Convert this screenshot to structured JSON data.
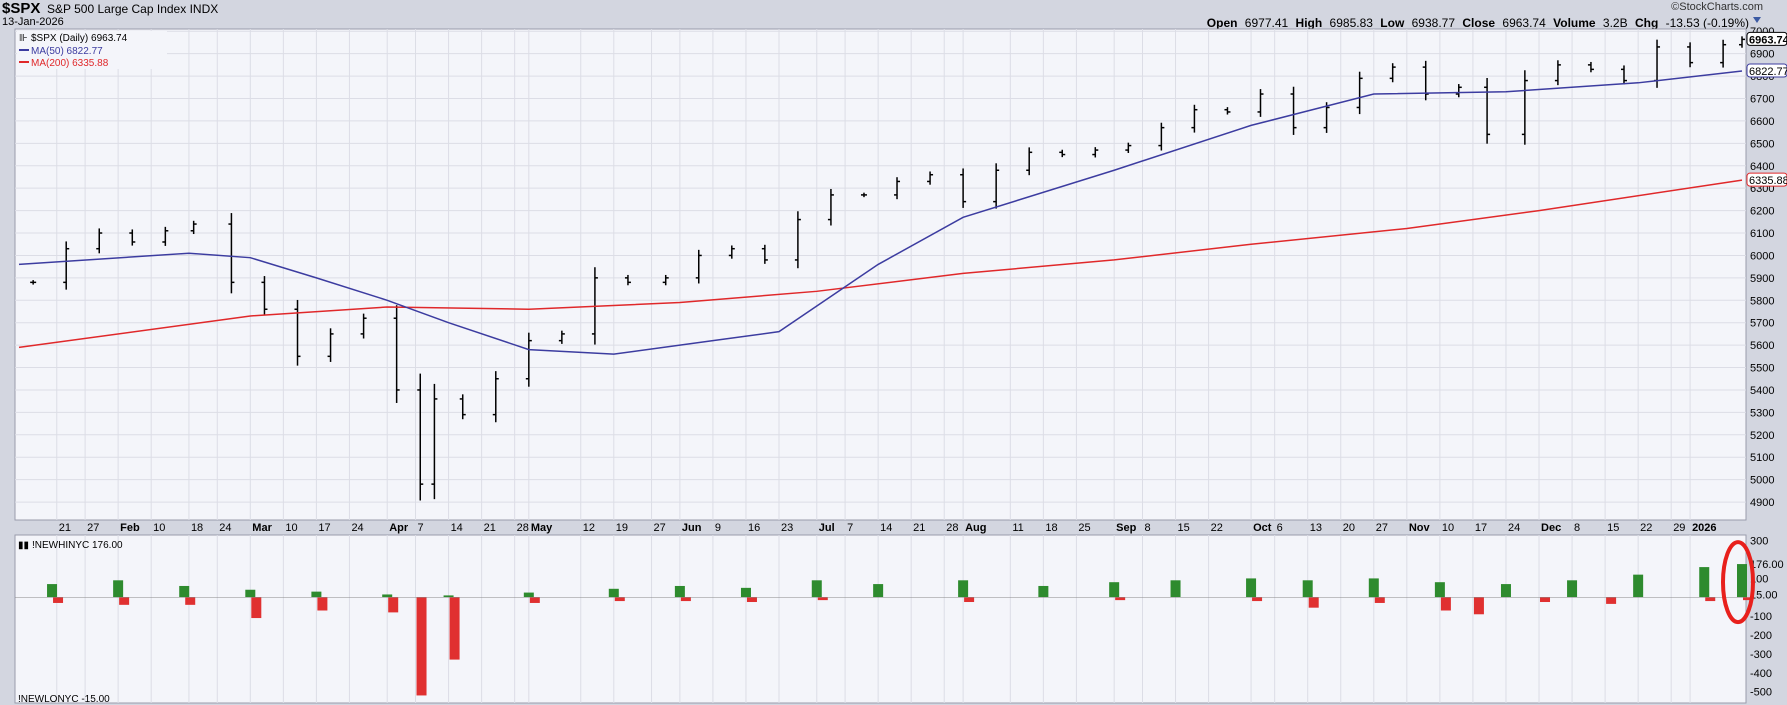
{
  "header": {
    "symbol": "$SPX",
    "description": "S&P 500 Large Cap Index",
    "exchange": "INDX",
    "date": "13-Jan-2026",
    "brand": "©StockCharts.com",
    "open_label": "Open",
    "open": "6977.41",
    "high_label": "High",
    "high": "6985.83",
    "low_label": "Low",
    "low": "6938.77",
    "close_label": "Close",
    "close": "6963.74",
    "volume_label": "Volume",
    "volume": "3.2B",
    "chg_label": "Chg",
    "chg": "-13.53 (-0.19%)"
  },
  "legend": {
    "price": "$SPX (Daily) 6963.74",
    "ma50": "MA(50) 6822.77",
    "ma200": "MA(200) 6335.88",
    "nh": "!NEWHINYC 176.00",
    "nl": "!NEWLONYC -15.00"
  },
  "colors": {
    "price": "#000000",
    "ma50": "#3c3ca0",
    "ma200": "#e0282a",
    "positive": "#2e8b2e",
    "negative": "#e03030",
    "highlight": "#e8201c",
    "panel_bg": "#f4f5fa",
    "grid": "#dcdde6"
  },
  "chart_data": [
    {
      "type": "line",
      "subtype": "ohlc-bars",
      "title": "$SPX S&P 500 Large Cap Index",
      "ylim": [
        4820,
        7010
      ],
      "y_ticks": [
        4900,
        5000,
        5100,
        5200,
        5300,
        5400,
        5500,
        5600,
        5700,
        5800,
        5900,
        6000,
        6100,
        6200,
        6300,
        6400,
        6500,
        6600,
        6700,
        6800,
        6900,
        7000
      ],
      "y_tick_labels": [
        "4900",
        "5000",
        "5100",
        "5200",
        "5300",
        "5400",
        "5500",
        "5600",
        "5700",
        "5800",
        "5900",
        "6000",
        "6100",
        "6200",
        "6300",
        "6400",
        "6500",
        "6600",
        "6700",
        "6800",
        "6900",
        "7000"
      ],
      "last_value_labels": [
        {
          "value": 6963.74,
          "label": "6963.74",
          "series": "price"
        },
        {
          "value": 6822.77,
          "label": "6822.77",
          "series": "ma50"
        },
        {
          "value": 6335.88,
          "label": "6335.88",
          "series": "ma200"
        }
      ],
      "x_label_dates": [
        "2025-01-21",
        "2025-01-27",
        "2025-02-03",
        "2025-02-10",
        "2025-02-18",
        "2025-02-24",
        "2025-03-03",
        "2025-03-10",
        "2025-03-17",
        "2025-03-24",
        "2025-04-01",
        "2025-04-07",
        "2025-04-14",
        "2025-04-21",
        "2025-04-28",
        "2025-05-01",
        "2025-05-12",
        "2025-05-19",
        "2025-05-27",
        "2025-06-02",
        "2025-06-09",
        "2025-06-16",
        "2025-06-23",
        "2025-07-01",
        "2025-07-07",
        "2025-07-14",
        "2025-07-21",
        "2025-07-28",
        "2025-08-01",
        "2025-08-11",
        "2025-08-18",
        "2025-08-25",
        "2025-09-02",
        "2025-09-08",
        "2025-09-15",
        "2025-09-22",
        "2025-10-01",
        "2025-10-06",
        "2025-10-13",
        "2025-10-20",
        "2025-10-27",
        "2025-11-03",
        "2025-11-10",
        "2025-11-17",
        "2025-11-24",
        "2025-12-01",
        "2025-12-08",
        "2025-12-15",
        "2025-12-22",
        "2025-12-29",
        "2026-01-02"
      ],
      "x_labels": [
        "21",
        "27",
        "Feb",
        "10",
        "18",
        "24",
        "Mar",
        "10",
        "17",
        "24",
        "Apr",
        "7",
        "14",
        "21",
        "28",
        "May",
        "12",
        "19",
        "27",
        "Jun",
        "9",
        "16",
        "23",
        "Jul",
        "7",
        "14",
        "21",
        "28",
        "Aug",
        "11",
        "18",
        "25",
        "Sep",
        "8",
        "15",
        "22",
        "Oct",
        "6",
        "13",
        "20",
        "27",
        "Nov",
        "10",
        "17",
        "24",
        "Dec",
        "8",
        "15",
        "22",
        "29",
        "2026"
      ],
      "x_bold_labels": [
        "Feb",
        "Mar",
        "Apr",
        "May",
        "Jun",
        "Jul",
        "Aug",
        "Sep",
        "Oct",
        "Nov",
        "Dec",
        "2026"
      ],
      "series": [
        {
          "name": "$SPX (Daily)",
          "kind": "ohlc",
          "x": [
            "2025-01-16",
            "2025-01-23",
            "2025-01-30",
            "2025-02-06",
            "2025-02-13",
            "2025-02-19",
            "2025-02-27",
            "2025-03-06",
            "2025-03-13",
            "2025-03-20",
            "2025-03-27",
            "2025-04-03",
            "2025-04-08",
            "2025-04-11",
            "2025-04-17",
            "2025-04-24",
            "2025-05-01",
            "2025-05-08",
            "2025-05-15",
            "2025-05-22",
            "2025-05-30",
            "2025-06-06",
            "2025-06-13",
            "2025-06-20",
            "2025-06-27",
            "2025-07-04",
            "2025-07-11",
            "2025-07-18",
            "2025-07-25",
            "2025-08-01",
            "2025-08-08",
            "2025-08-15",
            "2025-08-22",
            "2025-08-29",
            "2025-09-05",
            "2025-09-12",
            "2025-09-19",
            "2025-09-26",
            "2025-10-03",
            "2025-10-10",
            "2025-10-17",
            "2025-10-24",
            "2025-10-31",
            "2025-11-07",
            "2025-11-14",
            "2025-11-20",
            "2025-11-28",
            "2025-12-05",
            "2025-12-12",
            "2025-12-19",
            "2025-12-26",
            "2026-01-02",
            "2026-01-09",
            "2026-01-13"
          ],
          "values": [
            5880,
            6030,
            6100,
            6060,
            6110,
            6140,
            5880,
            5760,
            5550,
            5650,
            5720,
            5400,
            4980,
            5360,
            5290,
            5450,
            5620,
            5650,
            5900,
            5880,
            5900,
            6000,
            6030,
            5980,
            6160,
            6270,
            6270,
            6330,
            6360,
            6240,
            6380,
            6460,
            6450,
            6470,
            6490,
            6570,
            6650,
            6640,
            6720,
            6570,
            6660,
            6790,
            6840,
            6720,
            6750,
            6540,
            6780,
            6850,
            6830,
            6780,
            6930,
            6860,
            6940,
            6963.74
          ]
        },
        {
          "name": "MA(50)",
          "kind": "line",
          "x": [
            "2025-01-13",
            "2025-02-18",
            "2025-03-03",
            "2025-03-17",
            "2025-04-01",
            "2025-04-14",
            "2025-05-01",
            "2025-05-19",
            "2025-06-09",
            "2025-06-23",
            "2025-07-14",
            "2025-08-01",
            "2025-09-02",
            "2025-10-01",
            "2025-10-27",
            "2025-11-24",
            "2025-12-22",
            "2026-01-13"
          ],
          "values": [
            5960,
            6010,
            5990,
            5900,
            5800,
            5700,
            5580,
            5560,
            5620,
            5660,
            5960,
            6170,
            6380,
            6580,
            6720,
            6730,
            6770,
            6822.77
          ]
        },
        {
          "name": "MA(200)",
          "kind": "line",
          "x": [
            "2025-01-13",
            "2025-03-03",
            "2025-04-01",
            "2025-05-01",
            "2025-06-02",
            "2025-07-01",
            "2025-08-01",
            "2025-09-02",
            "2025-10-01",
            "2025-11-03",
            "2025-12-01",
            "2026-01-13"
          ],
          "values": [
            5590,
            5730,
            5770,
            5760,
            5790,
            5840,
            5920,
            5980,
            6050,
            6120,
            6200,
            6335.88
          ]
        }
      ]
    },
    {
      "type": "bar",
      "title": "!NEWHINYC / !NEWLONYC",
      "ylim": [
        -560,
        330
      ],
      "y_ticks": [
        300,
        176,
        100,
        15,
        -100,
        -200,
        -300,
        -400,
        -500
      ],
      "y_tick_labels": [
        "300",
        "176.00",
        "100",
        "15.00",
        "-100",
        "-200",
        "-300",
        "-400",
        "-500"
      ],
      "series": [
        {
          "name": "!NEWHINYC",
          "kind": "bar-positive",
          "x": [
            "2025-01-20",
            "2025-02-03",
            "2025-02-17",
            "2025-03-03",
            "2025-03-17",
            "2025-04-01",
            "2025-04-14",
            "2025-05-01",
            "2025-05-19",
            "2025-06-02",
            "2025-06-16",
            "2025-07-01",
            "2025-07-14",
            "2025-08-01",
            "2025-08-18",
            "2025-09-02",
            "2025-09-15",
            "2025-10-01",
            "2025-10-13",
            "2025-10-27",
            "2025-11-10",
            "2025-11-24",
            "2025-12-08",
            "2025-12-22",
            "2026-01-05",
            "2026-01-13"
          ],
          "values": [
            70,
            90,
            60,
            40,
            30,
            15,
            10,
            25,
            45,
            60,
            50,
            90,
            70,
            90,
            60,
            80,
            90,
            100,
            90,
            100,
            80,
            70,
            90,
            120,
            160,
            176
          ]
        },
        {
          "name": "!NEWLONYC",
          "kind": "bar-negative",
          "x": [
            "2025-01-20",
            "2025-02-03",
            "2025-02-17",
            "2025-03-03",
            "2025-03-17",
            "2025-04-01",
            "2025-04-07",
            "2025-04-14",
            "2025-05-01",
            "2025-05-19",
            "2025-06-02",
            "2025-06-16",
            "2025-07-01",
            "2025-08-01",
            "2025-09-02",
            "2025-10-01",
            "2025-10-13",
            "2025-10-27",
            "2025-11-10",
            "2025-11-17",
            "2025-12-01",
            "2025-12-15",
            "2026-01-05",
            "2026-01-13"
          ],
          "values": [
            -30,
            -40,
            -40,
            -110,
            -70,
            -80,
            -520,
            -330,
            -30,
            -20,
            -20,
            -25,
            -15,
            -25,
            -15,
            -20,
            -55,
            -30,
            -70,
            -90,
            -25,
            -35,
            -20,
            -15
          ]
        }
      ],
      "annotation": {
        "shape": "ellipse",
        "marks": "latest-bar"
      }
    }
  ]
}
